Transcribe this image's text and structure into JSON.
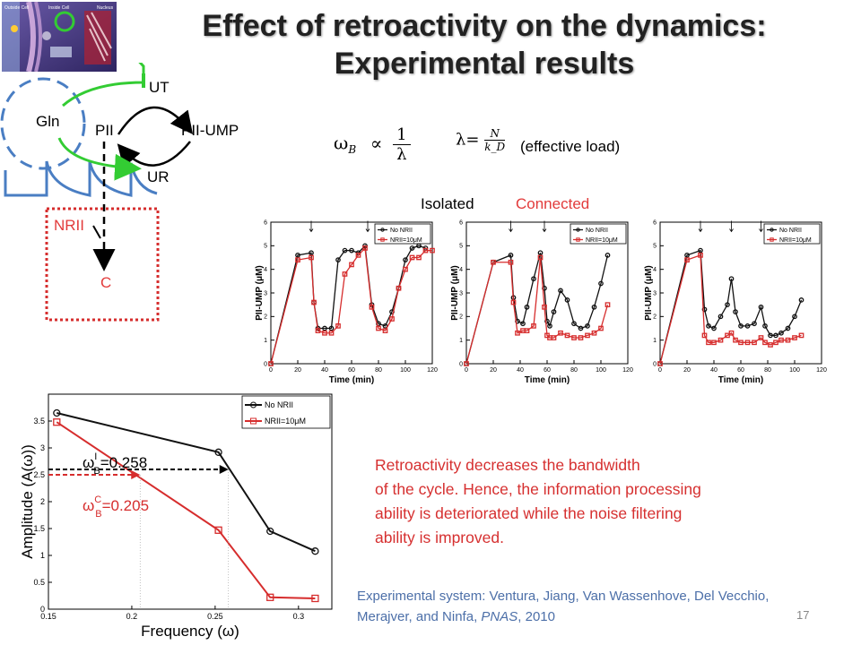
{
  "slide": {
    "title_line1": "Effect of retroactivity on the dynamics:",
    "title_line2": "Experimental results",
    "page_number": "17"
  },
  "diagram": {
    "ut": "UT",
    "ur": "UR",
    "pii": "PII",
    "pii_ump": "PII-UMP",
    "gln": "Gln",
    "nrii": "NRII",
    "c": "C",
    "green": "#33cc33",
    "red": "#d62d2d",
    "blue": "#4a7ec3"
  },
  "formulas": {
    "omega_relation": "ω_B ∝ 1/λ",
    "omega_symbol": "ω",
    "omega_sub": "B",
    "proportional": "∝",
    "frac_num": "1",
    "frac_den": "λ",
    "lambda_eq": "λ=",
    "lambda_num": "N",
    "lambda_den": "k_D",
    "effective_load": "(effective load)"
  },
  "labels": {
    "isolated": "Isolated",
    "connected": "Connected"
  },
  "text": {
    "retro_line1": "Retroactivity decreases the bandwidth",
    "retro_line2": "of the cycle. Hence, the information processing",
    "retro_line3": "ability is deteriorated while the noise filtering",
    "retro_line4": "ability is improved.",
    "credit_line1": "Experimental system: Ventura, Jiang, Van Wassenhove, Del Vecchio,",
    "credit_line2_a": "Merajver, and Ninfa, ",
    "credit_line2_journal": "PNAS",
    "credit_line2_b": ", 2010"
  },
  "chart_data": [
    {
      "type": "line",
      "xlabel": "Time (min)",
      "ylabel": "PII-UMP (μM)",
      "xlim": [
        0,
        120
      ],
      "ylim": [
        0,
        6
      ],
      "xticks": [
        "0",
        "20",
        "40",
        "60",
        "80",
        "100",
        "120"
      ],
      "yticks": [
        "0",
        "1",
        "2",
        "3",
        "4",
        "5",
        "6"
      ],
      "legend": "top-right",
      "series": [
        {
          "name": "No NRII",
          "color": "#111111",
          "x": [
            0,
            20,
            30,
            32,
            35,
            40,
            45,
            50,
            55,
            60,
            65,
            70,
            75,
            80,
            85,
            90,
            95,
            100,
            105,
            110,
            115
          ],
          "y": [
            0,
            4.6,
            4.7,
            2.6,
            1.5,
            1.5,
            1.5,
            4.4,
            4.8,
            4.8,
            4.7,
            5.0,
            2.5,
            1.7,
            1.6,
            2.2,
            3.2,
            4.4,
            4.9,
            5.0,
            4.9
          ]
        },
        {
          "name": "NRII=10μM",
          "color": "#d62d2d",
          "x": [
            0,
            20,
            30,
            32,
            35,
            40,
            45,
            50,
            55,
            60,
            65,
            70,
            75,
            80,
            85,
            90,
            95,
            100,
            105,
            110,
            115,
            120
          ],
          "y": [
            0,
            4.4,
            4.5,
            2.6,
            1.4,
            1.3,
            1.3,
            1.6,
            3.8,
            4.2,
            4.6,
            4.9,
            2.4,
            1.5,
            1.4,
            1.9,
            3.2,
            4.0,
            4.5,
            4.5,
            4.8,
            4.8
          ]
        }
      ]
    },
    {
      "type": "line",
      "xlabel": "Time (min)",
      "ylabel": "PII-UMP (μM)",
      "xlim": [
        0,
        120
      ],
      "ylim": [
        0,
        6
      ],
      "xticks": [
        "0",
        "20",
        "40",
        "60",
        "80",
        "100",
        "120"
      ],
      "yticks": [
        "0",
        "1",
        "2",
        "3",
        "4",
        "5",
        "6"
      ],
      "legend": "top-right",
      "series": [
        {
          "name": "No NRII",
          "color": "#111111",
          "x": [
            0,
            20,
            33,
            35,
            38,
            42,
            45,
            50,
            55,
            58,
            60,
            62,
            65,
            70,
            75,
            80,
            85,
            90,
            95,
            100,
            105
          ],
          "y": [
            0,
            4.3,
            4.6,
            2.8,
            1.8,
            1.7,
            2.4,
            3.6,
            4.7,
            3.2,
            1.8,
            1.6,
            2.2,
            3.1,
            2.7,
            1.7,
            1.5,
            1.6,
            2.4,
            3.4,
            4.6
          ]
        },
        {
          "name": "NRII=10μM",
          "color": "#d62d2d",
          "x": [
            0,
            20,
            33,
            35,
            38,
            42,
            45,
            50,
            55,
            58,
            60,
            62,
            65,
            70,
            75,
            80,
            85,
            90,
            95,
            100,
            105
          ],
          "y": [
            0,
            4.3,
            4.3,
            2.6,
            1.3,
            1.4,
            1.4,
            1.6,
            4.5,
            2.4,
            1.2,
            1.1,
            1.1,
            1.3,
            1.2,
            1.1,
            1.1,
            1.2,
            1.3,
            1.5,
            2.5
          ]
        }
      ]
    },
    {
      "type": "line",
      "xlabel": "Time (min)",
      "ylabel": "PII-UMP (μM)",
      "xlim": [
        0,
        120
      ],
      "ylim": [
        0,
        6
      ],
      "xticks": [
        "0",
        "20",
        "40",
        "60",
        "80",
        "100",
        "120"
      ],
      "yticks": [
        "0",
        "1",
        "2",
        "3",
        "4",
        "5",
        "6"
      ],
      "legend": "top-right",
      "series": [
        {
          "name": "No NRII",
          "color": "#111111",
          "x": [
            0,
            20,
            30,
            33,
            36,
            40,
            45,
            50,
            53,
            56,
            60,
            65,
            70,
            75,
            78,
            82,
            86,
            90,
            95,
            100,
            105
          ],
          "y": [
            0,
            4.6,
            4.8,
            2.3,
            1.6,
            1.5,
            2.0,
            2.5,
            3.6,
            2.2,
            1.6,
            1.6,
            1.7,
            2.4,
            1.6,
            1.2,
            1.2,
            1.3,
            1.5,
            2.0,
            2.7
          ]
        },
        {
          "name": "NRII=10μM",
          "color": "#d62d2d",
          "x": [
            0,
            20,
            30,
            33,
            36,
            40,
            45,
            50,
            53,
            56,
            60,
            65,
            70,
            75,
            78,
            82,
            86,
            90,
            95,
            100,
            105
          ],
          "y": [
            0,
            4.4,
            4.6,
            1.2,
            0.9,
            0.9,
            1.0,
            1.2,
            1.3,
            1.0,
            0.9,
            0.9,
            0.9,
            1.1,
            0.9,
            0.8,
            0.9,
            1.0,
            1.0,
            1.1,
            1.2
          ]
        }
      ]
    },
    {
      "type": "line",
      "xlabel": "Frequency (ω)",
      "ylabel": "Amplitude (A(ω))",
      "xlim": [
        0.15,
        0.32
      ],
      "ylim": [
        0,
        4
      ],
      "xticks": [
        "0.15",
        "0.2",
        "0.25",
        "0.3"
      ],
      "yticks": [
        "0",
        "0.5",
        "1",
        "1.5",
        "2",
        "2.5",
        "3",
        "3.5"
      ],
      "legend": "top-right",
      "series": [
        {
          "name": "No NRII",
          "color": "#111111",
          "x": [
            0.155,
            0.252,
            0.283,
            0.31
          ],
          "y": [
            3.65,
            2.92,
            1.45,
            1.08
          ]
        },
        {
          "name": "NRII=10μM",
          "color": "#d62d2d",
          "x": [
            0.155,
            0.252,
            0.283,
            0.31
          ],
          "y": [
            3.48,
            1.47,
            0.22,
            0.2
          ]
        }
      ],
      "annotations": [
        {
          "label_sym": "ω",
          "label_sub": "B",
          "label_sup": "I",
          "label_val": "=0.258",
          "x": 0.258,
          "y": 2.6
        },
        {
          "label_sym": "ω",
          "label_sub": "B",
          "label_sup": "C",
          "label_val": "=0.205",
          "x": 0.205,
          "y": 2.5
        }
      ]
    }
  ]
}
